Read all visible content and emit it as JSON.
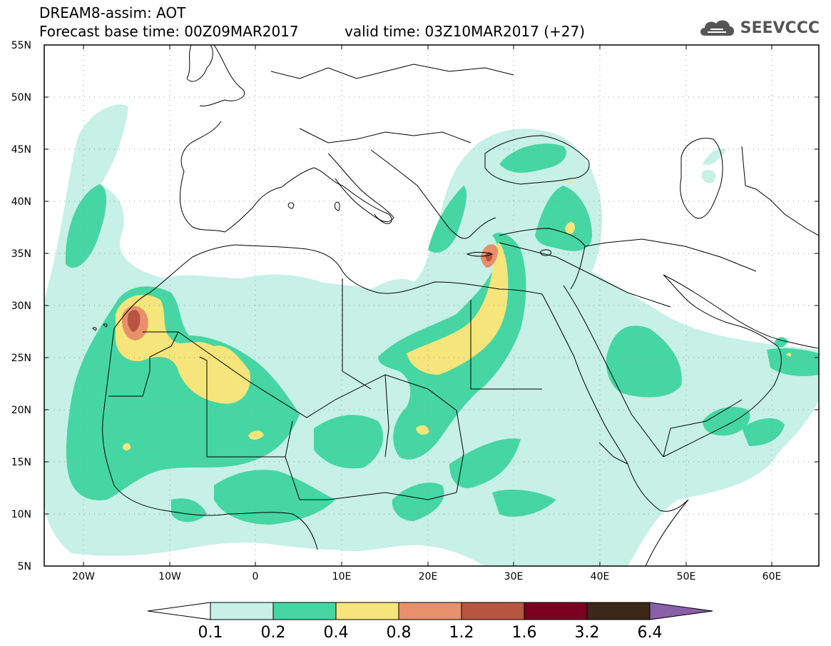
{
  "header": {
    "line1": "DREAM8-assim: AOT",
    "line2": "Forecast base time: 00Z09MAR2017",
    "valid": "valid time: 03Z10MAR2017 (+27)"
  },
  "logo": {
    "text": "SEEVCCC",
    "icon": "cloud-logo-icon"
  },
  "map": {
    "lon_range": [
      -25,
      65
    ],
    "lat_range": [
      5,
      55
    ],
    "lat_ticks": [
      "5N",
      "10N",
      "15N",
      "20N",
      "25N",
      "30N",
      "35N",
      "40N",
      "45N",
      "50N",
      "55N"
    ],
    "lon_ticks": [
      "20W",
      "10W",
      "0",
      "10E",
      "20E",
      "30E",
      "40E",
      "50E",
      "60E"
    ]
  },
  "colorbar": {
    "labels": [
      "0.1",
      "0.2",
      "0.4",
      "0.8",
      "1.2",
      "1.6",
      "3.2",
      "6.4"
    ],
    "colors": [
      "#ffffff",
      "#c7f0e6",
      "#45d6a3",
      "#f5e57a",
      "#e8906a",
      "#b85540",
      "#7a0020",
      "#3a2818",
      "#8a60a8"
    ]
  }
}
